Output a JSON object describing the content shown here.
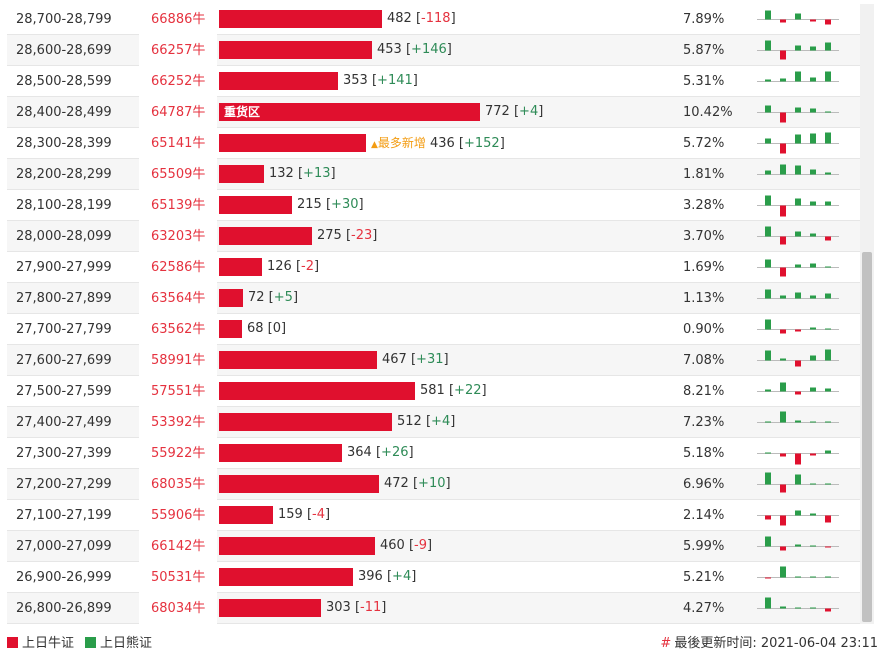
{
  "colors": {
    "bull": "#e0102e",
    "bear": "#2a9d4a",
    "note": "#f39c12"
  },
  "unit": "牛",
  "rows": [
    {
      "range": "28,700-28,799",
      "count": "66886",
      "value": 482,
      "change": "-118",
      "pct": "7.89%",
      "spark": [
        9,
        -3,
        6,
        -2,
        -5
      ]
    },
    {
      "range": "28,600-28,699",
      "count": "66257",
      "value": 453,
      "change": "+146",
      "pct": "5.87%",
      "spark": [
        10,
        -9,
        5,
        4,
        8
      ]
    },
    {
      "range": "28,500-28,599",
      "count": "66252",
      "value": 353,
      "change": "+141",
      "pct": "5.31%",
      "spark": [
        2,
        3,
        10,
        4,
        10
      ]
    },
    {
      "range": "28,400-28,499",
      "count": "64787",
      "value": 772,
      "change": "+4",
      "pct": "10.42%",
      "spark": [
        7,
        -10,
        5,
        4,
        1
      ],
      "tag": "重货区"
    },
    {
      "range": "28,300-28,399",
      "count": "65141",
      "value": 436,
      "change": "+152",
      "pct": "5.72%",
      "spark": [
        5,
        -10,
        9,
        10,
        11
      ],
      "note": "最多新增"
    },
    {
      "range": "28,200-28,299",
      "count": "65509",
      "value": 132,
      "change": "+13",
      "pct": "1.81%",
      "spark": [
        4,
        10,
        9,
        5,
        2
      ]
    },
    {
      "range": "28,100-28,199",
      "count": "65139",
      "value": 215,
      "change": "+30",
      "pct": "3.28%",
      "spark": [
        10,
        -11,
        7,
        4,
        4
      ]
    },
    {
      "range": "28,000-28,099",
      "count": "63203",
      "value": 275,
      "change": "-23",
      "pct": "3.70%",
      "spark": [
        10,
        -8,
        5,
        3,
        -4
      ]
    },
    {
      "range": "27,900-27,999",
      "count": "62586",
      "value": 126,
      "change": "-2",
      "pct": "1.69%",
      "spark": [
        8,
        -9,
        3,
        4,
        1
      ]
    },
    {
      "range": "27,800-27,899",
      "count": "63564",
      "value": 72,
      "change": "+5",
      "pct": "1.13%",
      "spark": [
        9,
        3,
        6,
        3,
        5
      ]
    },
    {
      "range": "27,700-27,799",
      "count": "63562",
      "value": 68,
      "change": "0",
      "pct": "0.90%",
      "spark": [
        10,
        -4,
        -2,
        2,
        1
      ]
    },
    {
      "range": "27,600-27,699",
      "count": "58991",
      "value": 467,
      "change": "+31",
      "pct": "7.08%",
      "spark": [
        10,
        2,
        -6,
        5,
        11
      ]
    },
    {
      "range": "27,500-27,599",
      "count": "57551",
      "value": 581,
      "change": "+22",
      "pct": "8.21%",
      "spark": [
        2,
        9,
        -3,
        4,
        3
      ]
    },
    {
      "range": "27,400-27,499",
      "count": "53392",
      "value": 512,
      "change": "+4",
      "pct": "7.23%",
      "spark": [
        1,
        11,
        2,
        1,
        1
      ]
    },
    {
      "range": "27,300-27,399",
      "count": "55922",
      "value": 364,
      "change": "+26",
      "pct": "5.18%",
      "spark": [
        1,
        -3,
        -11,
        -2,
        3
      ]
    },
    {
      "range": "27,200-27,299",
      "count": "68035",
      "value": 472,
      "change": "+10",
      "pct": "6.96%",
      "spark": [
        12,
        -8,
        10,
        1,
        1
      ]
    },
    {
      "range": "27,100-27,199",
      "count": "55906",
      "value": 159,
      "change": "-4",
      "pct": "2.14%",
      "spark": [
        -4,
        -10,
        5,
        2,
        -7
      ]
    },
    {
      "range": "27,000-27,099",
      "count": "66142",
      "value": 460,
      "change": "-9",
      "pct": "5.99%",
      "spark": [
        10,
        -4,
        2,
        1,
        -1
      ]
    },
    {
      "range": "26,900-26,999",
      "count": "50531",
      "value": 396,
      "change": "+4",
      "pct": "5.21%",
      "spark": [
        -1,
        11,
        1,
        1,
        1
      ]
    },
    {
      "range": "26,800-26,899",
      "count": "68034",
      "value": 303,
      "change": "-11",
      "pct": "4.27%",
      "spark": [
        11,
        2,
        1,
        1,
        -3
      ]
    }
  ],
  "footer": {
    "legend_bull": "上日牛证",
    "legend_bear": "上日熊证",
    "updated_hash": "#",
    "updated_label": "最後更新时间:",
    "updated_time": "2021-06-04 23:11"
  }
}
